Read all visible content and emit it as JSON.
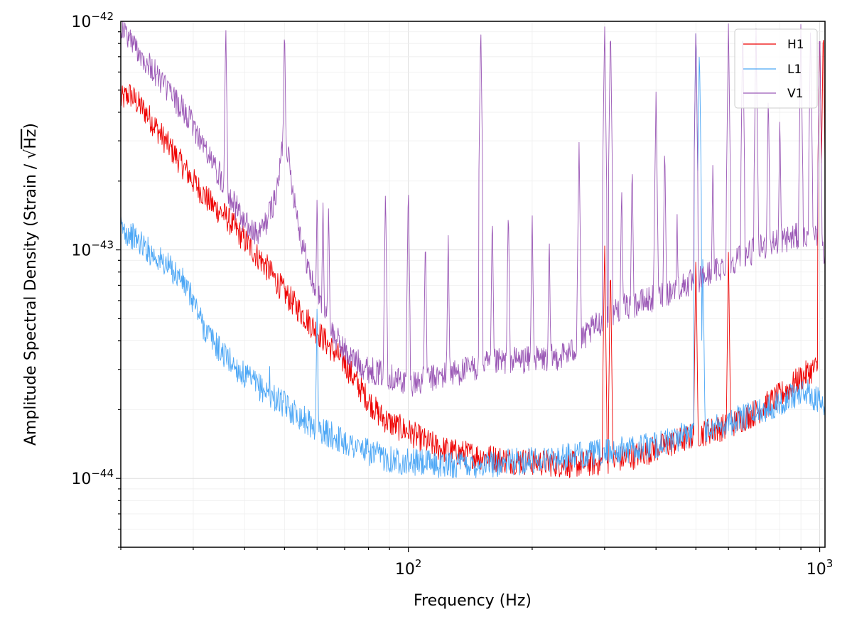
{
  "chart_data": {
    "type": "line",
    "xscale": "log",
    "yscale": "log",
    "xlim": [
      20,
      1030
    ],
    "ylim": [
      5e-45,
      1e-42
    ],
    "xlabel": "Frequency (Hz)",
    "ylabel_parts": [
      "Amplitude Spectral Density (Strain / ",
      "Hz",
      ")"
    ],
    "ylabel_sqrt_symbol": "√",
    "x_ticks": [
      {
        "value": 100,
        "base": "10",
        "exp": "2"
      },
      {
        "value": 1000,
        "base": "10",
        "exp": "3"
      }
    ],
    "y_ticks": [
      {
        "value": 1e-44,
        "base": "10",
        "exp": "−44"
      },
      {
        "value": 1e-43,
        "base": "10",
        "exp": "−43"
      },
      {
        "value": 1e-42,
        "base": "10",
        "exp": "−42"
      }
    ],
    "grid": true,
    "legend_position": "top-right",
    "series": [
      {
        "name": "H1",
        "color": "#ee0000",
        "points": [
          [
            20,
            4.5e-43
          ],
          [
            21,
            4.8e-43
          ],
          [
            23,
            4e-43
          ],
          [
            25,
            3.2e-43
          ],
          [
            28,
            2.4e-43
          ],
          [
            30,
            2e-43
          ],
          [
            33,
            1.6e-43
          ],
          [
            36,
            1.4e-43
          ],
          [
            40,
            1.1e-43
          ],
          [
            45,
            8.5e-44
          ],
          [
            50,
            6.5e-44
          ],
          [
            55,
            5.3e-44
          ],
          [
            60,
            4.4e-44
          ],
          [
            65,
            3.7e-44
          ],
          [
            70,
            3.2e-44
          ],
          [
            75,
            2.6e-44
          ],
          [
            80,
            2.2e-44
          ],
          [
            85,
            1.9e-44
          ],
          [
            90,
            1.75e-44
          ],
          [
            100,
            1.6e-44
          ],
          [
            110,
            1.45e-44
          ],
          [
            120,
            1.35e-44
          ],
          [
            130,
            1.3e-44
          ],
          [
            150,
            1.25e-44
          ],
          [
            175,
            1.2e-44
          ],
          [
            200,
            1.18e-44
          ],
          [
            250,
            1.15e-44
          ],
          [
            300,
            1.18e-44
          ],
          [
            350,
            1.25e-44
          ],
          [
            400,
            1.35e-44
          ],
          [
            450,
            1.45e-44
          ],
          [
            500,
            1.55e-44
          ],
          [
            600,
            1.7e-44
          ],
          [
            700,
            1.95e-44
          ],
          [
            800,
            2.3e-44
          ],
          [
            900,
            2.75e-44
          ],
          [
            950,
            2.95e-44
          ],
          [
            1000,
            3.1e-44
          ],
          [
            1020,
            3.6e-44
          ]
        ],
        "spikes": [
          [
            36,
            1.4e-43
          ],
          [
            44,
            1e-43
          ],
          [
            60,
            4.7e-44
          ],
          [
            65,
            4e-44
          ],
          [
            70,
            3.5e-44
          ],
          [
            300,
            1.1e-43
          ],
          [
            310,
            9e-44
          ],
          [
            500,
            1e-43
          ],
          [
            600,
            1e-43
          ],
          [
            1000,
            1e-42
          ],
          [
            1020,
            1e-42
          ]
        ]
      },
      {
        "name": "L1",
        "color": "#4ba6f5",
        "points": [
          [
            20,
            1.25e-43
          ],
          [
            22,
            1.1e-43
          ],
          [
            24,
            9.5e-44
          ],
          [
            26,
            8.5e-44
          ],
          [
            28,
            7.5e-44
          ],
          [
            30,
            6e-44
          ],
          [
            32,
            4.5e-44
          ],
          [
            35,
            3.6e-44
          ],
          [
            40,
            2.8e-44
          ],
          [
            45,
            2.4e-44
          ],
          [
            50,
            2.1e-44
          ],
          [
            55,
            1.85e-44
          ],
          [
            60,
            1.65e-44
          ],
          [
            70,
            1.45e-44
          ],
          [
            80,
            1.3e-44
          ],
          [
            90,
            1.22e-44
          ],
          [
            100,
            1.18e-44
          ],
          [
            120,
            1.15e-44
          ],
          [
            150,
            1.15e-44
          ],
          [
            200,
            1.2e-44
          ],
          [
            250,
            1.25e-44
          ],
          [
            300,
            1.3e-44
          ],
          [
            350,
            1.35e-44
          ],
          [
            400,
            1.4e-44
          ],
          [
            450,
            1.5e-44
          ],
          [
            500,
            1.6e-44
          ],
          [
            600,
            1.75e-44
          ],
          [
            700,
            1.95e-44
          ],
          [
            800,
            2.15e-44
          ],
          [
            900,
            2.4e-44
          ],
          [
            950,
            2.35e-44
          ],
          [
            1000,
            2.15e-44
          ],
          [
            1030,
            1.9e-44
          ]
        ],
        "spikes": [
          [
            46,
            3.3e-44
          ],
          [
            60,
            6e-44
          ],
          [
            500,
            1e-42
          ],
          [
            510,
            8e-43
          ],
          [
            520,
            1e-43
          ]
        ]
      },
      {
        "name": "V1",
        "color": "#9b59b6",
        "points": [
          [
            20,
            9.5e-43
          ],
          [
            22,
            7.5e-43
          ],
          [
            25,
            5.5e-43
          ],
          [
            28,
            4.2e-43
          ],
          [
            30,
            3.5e-43
          ],
          [
            33,
            2.5e-43
          ],
          [
            36,
            1.9e-43
          ],
          [
            38,
            1.55e-43
          ],
          [
            40,
            1.3e-43
          ],
          [
            43,
            1.15e-43
          ],
          [
            45,
            1.3e-43
          ],
          [
            48,
            1.8e-43
          ],
          [
            50,
            3.5e-43
          ],
          [
            52,
            2e-43
          ],
          [
            55,
            1.1e-43
          ],
          [
            58,
            7.5e-44
          ],
          [
            62,
            5.5e-44
          ],
          [
            66,
            4.2e-44
          ],
          [
            72,
            3.4e-44
          ],
          [
            80,
            3e-44
          ],
          [
            90,
            2.8e-44
          ],
          [
            100,
            2.6e-44
          ],
          [
            120,
            2.8e-44
          ],
          [
            140,
            3e-44
          ],
          [
            160,
            3.2e-44
          ],
          [
            180,
            3.3e-44
          ],
          [
            200,
            3.3e-44
          ],
          [
            230,
            3.4e-44
          ],
          [
            250,
            3.6e-44
          ],
          [
            280,
            4.5e-44
          ],
          [
            320,
            5.5e-44
          ],
          [
            360,
            5.8e-44
          ],
          [
            400,
            6.2e-44
          ],
          [
            450,
            6.8e-44
          ],
          [
            500,
            7.3e-44
          ],
          [
            550,
            8e-44
          ],
          [
            600,
            8.8e-44
          ],
          [
            700,
            1e-43
          ],
          [
            800,
            1.1e-43
          ],
          [
            900,
            1.15e-43
          ],
          [
            1000,
            1.1e-43
          ],
          [
            1030,
            9.5e-44
          ]
        ],
        "spikes": [
          [
            36,
            1e-42
          ],
          [
            50,
            1e-42
          ],
          [
            60,
            1.8e-43
          ],
          [
            62,
            1.7e-43
          ],
          [
            64,
            1.6e-43
          ],
          [
            88,
            1.9e-43
          ],
          [
            100,
            2e-43
          ],
          [
            110,
            1.2e-43
          ],
          [
            125,
            1.2e-43
          ],
          [
            150,
            1e-42
          ],
          [
            160,
            1.5e-43
          ],
          [
            175,
            1.6e-43
          ],
          [
            200,
            1.5e-43
          ],
          [
            220,
            1.2e-43
          ],
          [
            260,
            3e-43
          ],
          [
            300,
            1e-42
          ],
          [
            310,
            1e-42
          ],
          [
            330,
            2e-43
          ],
          [
            350,
            2.5e-43
          ],
          [
            400,
            5e-43
          ],
          [
            420,
            3e-43
          ],
          [
            450,
            1.5e-43
          ],
          [
            500,
            1e-42
          ],
          [
            550,
            2.5e-43
          ],
          [
            600,
            1e-42
          ],
          [
            650,
            1e-42
          ],
          [
            700,
            1e-42
          ],
          [
            750,
            5e-43
          ],
          [
            800,
            4e-43
          ],
          [
            900,
            1e-42
          ],
          [
            950,
            1e-42
          ],
          [
            1000,
            1e-42
          ]
        ]
      }
    ]
  }
}
